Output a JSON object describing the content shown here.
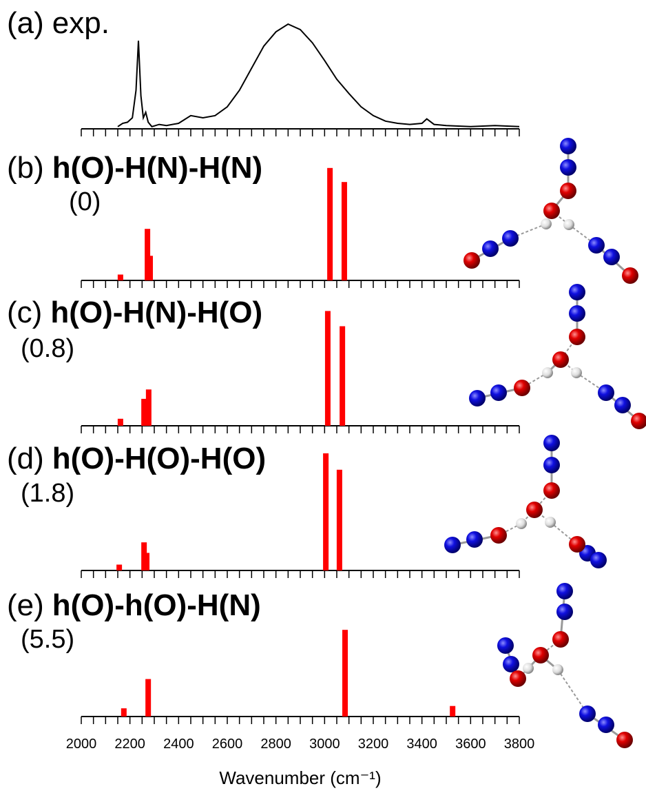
{
  "chart_data": [
    {
      "type": "line",
      "label": "(a)",
      "title": "exp.",
      "color": "#000000",
      "xlim": [
        2000,
        3800
      ],
      "ylim": [
        0,
        1
      ],
      "minor_xticks": [
        2000,
        2050,
        2100,
        2150,
        2200,
        2250,
        2300,
        2350,
        2400,
        2450,
        2500,
        2550,
        2600,
        2650,
        2700,
        2750,
        2800,
        2850,
        2900,
        2950,
        3000,
        3050,
        3100,
        3150,
        3200,
        3250,
        3300,
        3350,
        3400,
        3450,
        3500,
        3550,
        3600,
        3650,
        3700,
        3750,
        3800
      ],
      "x": [
        2150,
        2170,
        2190,
        2210,
        2225,
        2235,
        2245,
        2255,
        2265,
        2275,
        2290,
        2320,
        2350,
        2400,
        2450,
        2500,
        2550,
        2600,
        2650,
        2700,
        2750,
        2800,
        2850,
        2900,
        2950,
        3000,
        3050,
        3100,
        3150,
        3200,
        3250,
        3300,
        3350,
        3400,
        3420,
        3450,
        3500,
        3600,
        3700,
        3800
      ],
      "values": [
        0.02,
        0.05,
        0.06,
        0.1,
        0.35,
        0.8,
        0.3,
        0.1,
        0.15,
        0.06,
        0.02,
        0.04,
        0.03,
        0.05,
        0.12,
        0.1,
        0.12,
        0.2,
        0.35,
        0.55,
        0.75,
        0.88,
        0.95,
        0.9,
        0.78,
        0.62,
        0.45,
        0.32,
        0.2,
        0.12,
        0.07,
        0.05,
        0.04,
        0.05,
        0.09,
        0.04,
        0.03,
        0.02,
        0.03,
        0.02
      ]
    },
    {
      "type": "bar",
      "label": "(b)",
      "title": "h(O)-H(N)-H(N)",
      "subtitle": "(0)",
      "color": "#ff0000",
      "xlim": [
        2000,
        3800
      ],
      "ylim": [
        0,
        1
      ],
      "minor_xticks": [
        2000,
        2050,
        2100,
        2150,
        2200,
        2250,
        2300,
        2350,
        2400,
        2450,
        2500,
        2550,
        2600,
        2650,
        2700,
        2750,
        2800,
        2850,
        2900,
        2950,
        3000,
        3050,
        3100,
        3150,
        3200,
        3250,
        3300,
        3350,
        3400,
        3450,
        3500,
        3550,
        3600,
        3650,
        3700,
        3750,
        3800
      ],
      "x": [
        2161,
        2272,
        2283,
        3022,
        3081
      ],
      "values": [
        0.05,
        0.44,
        0.21,
        0.96,
        0.84
      ]
    },
    {
      "type": "bar",
      "label": "(c)",
      "title": "h(O)-H(N)-H(O)",
      "subtitle": "(0.8)",
      "color": "#ff0000",
      "xlim": [
        2000,
        3800
      ],
      "ylim": [
        0,
        1
      ],
      "minor_xticks": [
        2000,
        2050,
        2100,
        2150,
        2200,
        2250,
        2300,
        2350,
        2400,
        2450,
        2500,
        2550,
        2600,
        2650,
        2700,
        2750,
        2800,
        2850,
        2900,
        2950,
        3000,
        3050,
        3100,
        3150,
        3200,
        3250,
        3300,
        3350,
        3400,
        3450,
        3500,
        3550,
        3600,
        3650,
        3700,
        3750,
        3800
      ],
      "x": [
        2161,
        2258,
        2277,
        3013,
        3073
      ],
      "values": [
        0.06,
        0.23,
        0.31,
        0.98,
        0.85
      ]
    },
    {
      "type": "bar",
      "label": "(d)",
      "title": "h(O)-H(O)-H(O)",
      "subtitle": "(1.8)",
      "color": "#ff0000",
      "xlim": [
        2000,
        3800
      ],
      "ylim": [
        0,
        1
      ],
      "minor_xticks": [
        2000,
        2050,
        2100,
        2150,
        2200,
        2250,
        2300,
        2350,
        2400,
        2450,
        2500,
        2550,
        2600,
        2650,
        2700,
        2750,
        2800,
        2850,
        2900,
        2950,
        3000,
        3050,
        3100,
        3150,
        3200,
        3250,
        3300,
        3350,
        3400,
        3450,
        3500,
        3550,
        3600,
        3650,
        3700,
        3750,
        3800
      ],
      "x": [
        2156,
        2258,
        2269,
        3005,
        3061
      ],
      "values": [
        0.05,
        0.24,
        0.15,
        1.0,
        0.86
      ]
    },
    {
      "type": "bar",
      "label": "(e)",
      "title": "h(O)-h(O)-H(N)",
      "subtitle": "(5.5)",
      "color": "#ff0000",
      "xlim": [
        2000,
        3800
      ],
      "ylim": [
        0,
        1
      ],
      "minor_xticks": [
        2000,
        2050,
        2100,
        2150,
        2200,
        2250,
        2300,
        2350,
        2400,
        2450,
        2500,
        2550,
        2600,
        2650,
        2700,
        2750,
        2800,
        2850,
        2900,
        2950,
        3000,
        3050,
        3100,
        3150,
        3200,
        3250,
        3300,
        3350,
        3400,
        3450,
        3500,
        3550,
        3600,
        3650,
        3700,
        3750,
        3800
      ],
      "xticks": [
        2000,
        2200,
        2400,
        2600,
        2800,
        3000,
        3200,
        3400,
        3600,
        3800
      ],
      "xlabel": "Wavenumber (cm⁻¹)",
      "x": [
        2175,
        2275,
        3084,
        3526
      ],
      "values": [
        0.07,
        0.32,
        0.74,
        0.09
      ]
    }
  ]
}
